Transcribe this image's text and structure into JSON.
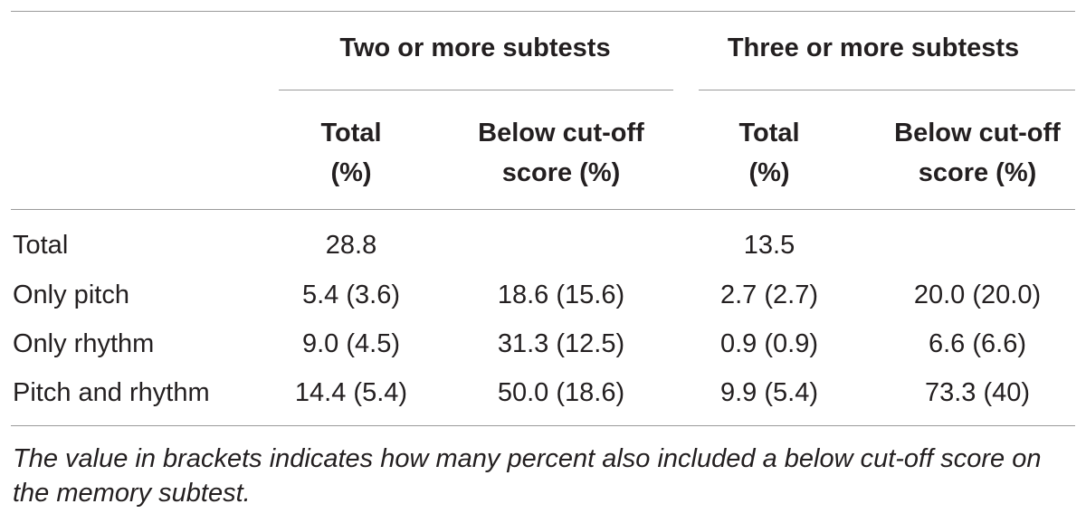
{
  "table": {
    "group_headers": [
      "Two or more subtests",
      "Three or more subtests"
    ],
    "sub_headers": [
      [
        "Total",
        "(%)"
      ],
      [
        "Below cut-off",
        "score (%)"
      ],
      [
        "Total",
        "(%)"
      ],
      [
        "Below cut-off",
        "score (%)"
      ]
    ],
    "rows": [
      {
        "label": "Total",
        "values": [
          "28.8",
          "",
          "13.5",
          ""
        ]
      },
      {
        "label": "Only pitch",
        "values": [
          "5.4 (3.6)",
          "18.6 (15.6)",
          "2.7 (2.7)",
          "20.0 (20.0)"
        ]
      },
      {
        "label": "Only rhythm",
        "values": [
          "9.0 (4.5)",
          "31.3 (12.5)",
          "0.9 (0.9)",
          "6.6 (6.6)"
        ]
      },
      {
        "label": "Pitch and rhythm",
        "values": [
          "14.4 (5.4)",
          "50.0 (18.6)",
          "9.9 (5.4)",
          "73.3 (40)"
        ]
      }
    ],
    "footnote": "The value in brackets indicates how many percent also included a below cut-off score on the memory subtest."
  }
}
